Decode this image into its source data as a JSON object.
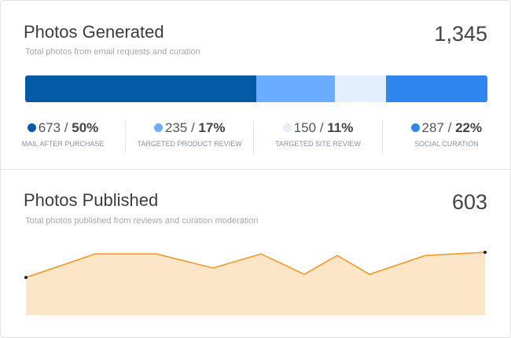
{
  "generated": {
    "title": "Photos Generated",
    "subtitle": "Total photos from email requests and curation",
    "total": "1,345",
    "segments": [
      {
        "count": "673",
        "percent": "50%",
        "label": "Mail after purchase",
        "color": "#055aa5",
        "share": 0.5
      },
      {
        "count": "235",
        "percent": "17%",
        "label": "Targeted product review",
        "color": "#6aacff",
        "share": 0.17
      },
      {
        "count": "150",
        "percent": "11%",
        "label": "Targeted site review",
        "color": "#e3efff",
        "share": 0.11
      },
      {
        "count": "287",
        "percent": "22%",
        "label": "Social curation",
        "color": "#2f86ee",
        "share": 0.22
      }
    ]
  },
  "published": {
    "title": "Photos Published",
    "subtitle": "Total photos published from reviews and curation moderation",
    "total": "603"
  },
  "chart_data": {
    "type": "area",
    "values": [
      48,
      78,
      78,
      60,
      78,
      52,
      76,
      52,
      76,
      80
    ],
    "line_color": "#f7931e",
    "fill_color": "#fde6c8",
    "grid": false,
    "axes": false
  }
}
